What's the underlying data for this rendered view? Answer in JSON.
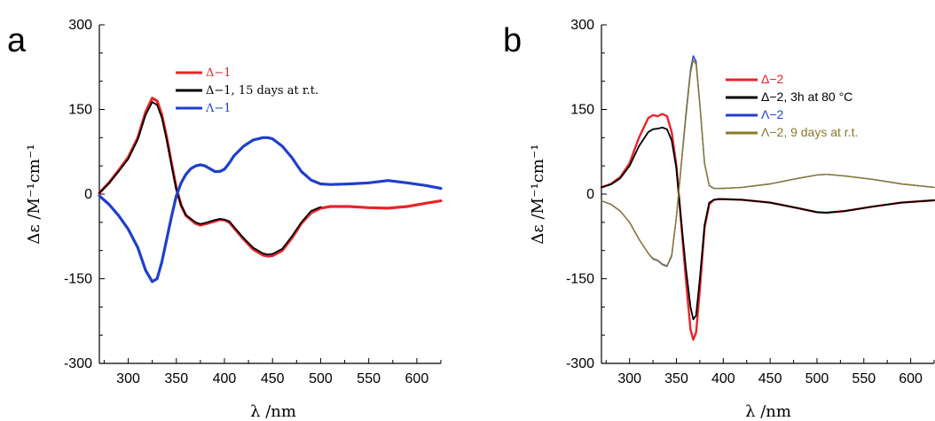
{
  "panels": [
    {
      "letter": "a",
      "xlabel": "λ /nm",
      "ylabel": "Δε /M⁻¹cm⁻¹",
      "xticks": [
        "300",
        "350",
        "400",
        "450",
        "500",
        "550",
        "600"
      ],
      "yticks": [
        "300",
        "150",
        "0",
        "-150",
        "-300"
      ]
    },
    {
      "letter": "b",
      "xlabel": "λ /nm",
      "ylabel": "Δε /M⁻¹cm⁻¹",
      "xticks": [
        "300",
        "350",
        "400",
        "450",
        "500",
        "550",
        "600"
      ],
      "yticks": [
        "300",
        "150",
        "0",
        "-150",
        "-300"
      ]
    }
  ],
  "legends": [
    [
      {
        "label": "Δ−1",
        "color": "#e8242a",
        "text_color": "#e8242a"
      },
      {
        "label": "Δ−1, 15 days at r.t.",
        "color": "#000000",
        "text_color": "#000000"
      },
      {
        "label": "Λ−1",
        "color": "#1f3fcc",
        "text_color": "#1f3fcc"
      }
    ],
    [
      {
        "label": "Δ−2",
        "color": "#e8242a",
        "text_color": "#e8242a"
      },
      {
        "label": "Δ−2, 3h at 80 °C",
        "color": "#000000",
        "text_color": "#000000"
      },
      {
        "label": "Λ−2",
        "color": "#1f3fcc",
        "text_color": "#1f3fcc"
      },
      {
        "label": "Λ−2, 9 days at r.t.",
        "color": "#8a7a2a",
        "text_color": "#8a7a2a"
      }
    ]
  ],
  "chart_data": [
    {
      "type": "line",
      "xlabel": "λ /nm",
      "ylabel": "Δε /M⁻¹cm⁻¹",
      "xlim": [
        270,
        625
      ],
      "ylim": [
        -300,
        300
      ],
      "grid": false,
      "legend_position": "top-center",
      "series": [
        {
          "name": "Δ−1",
          "color": "#e8242a",
          "width": 3.2,
          "x": [
            270,
            280,
            290,
            300,
            310,
            318,
            325,
            330,
            335,
            340,
            345,
            350,
            355,
            360,
            370,
            375,
            380,
            390,
            395,
            400,
            405,
            410,
            420,
            430,
            440,
            445,
            450,
            460,
            470,
            480,
            490,
            500,
            510,
            530,
            550,
            570,
            590,
            610,
            625
          ],
          "y": [
            2,
            20,
            42,
            65,
            100,
            145,
            170,
            165,
            140,
            100,
            55,
            10,
            -20,
            -38,
            -52,
            -55,
            -53,
            -48,
            -45,
            -46,
            -50,
            -60,
            -80,
            -98,
            -108,
            -110,
            -109,
            -100,
            -78,
            -52,
            -33,
            -25,
            -22,
            -22,
            -24,
            -25,
            -22,
            -16,
            -12
          ]
        },
        {
          "name": "Δ−1, 15 days at r.t.",
          "color": "#000000",
          "width": 1.8,
          "x": [
            270,
            280,
            290,
            300,
            310,
            318,
            325,
            330,
            335,
            340,
            345,
            350,
            355,
            360,
            370,
            375,
            380,
            390,
            395,
            400,
            405,
            410,
            420,
            430,
            440,
            445,
            450,
            460,
            470,
            480,
            490,
            500
          ],
          "y": [
            2,
            19,
            40,
            62,
            97,
            140,
            163,
            158,
            135,
            97,
            52,
            8,
            -20,
            -37,
            -50,
            -53,
            -51,
            -46,
            -44,
            -45,
            -48,
            -58,
            -78,
            -95,
            -105,
            -107,
            -106,
            -97,
            -75,
            -50,
            -30,
            -23
          ]
        },
        {
          "name": "Λ−1",
          "color": "#1f3fcc",
          "width": 3.2,
          "x": [
            270,
            280,
            290,
            300,
            310,
            318,
            325,
            330,
            335,
            340,
            345,
            350,
            355,
            360,
            365,
            370,
            375,
            380,
            385,
            390,
            395,
            400,
            405,
            410,
            420,
            430,
            440,
            445,
            450,
            460,
            470,
            480,
            490,
            500,
            510,
            530,
            550,
            570,
            590,
            610,
            625
          ],
          "y": [
            -3,
            -18,
            -38,
            -62,
            -95,
            -135,
            -155,
            -150,
            -120,
            -80,
            -40,
            -3,
            20,
            35,
            45,
            50,
            52,
            50,
            45,
            40,
            40,
            44,
            55,
            68,
            85,
            96,
            100,
            100,
            98,
            85,
            65,
            40,
            25,
            18,
            17,
            18,
            20,
            24,
            20,
            15,
            10
          ]
        }
      ]
    },
    {
      "type": "line",
      "xlabel": "λ /nm",
      "ylabel": "Δε /M⁻¹cm⁻¹",
      "xlim": [
        270,
        625
      ],
      "ylim": [
        -300,
        300
      ],
      "grid": false,
      "legend_position": "top-center",
      "series": [
        {
          "name": "Δ−2",
          "color": "#e8242a",
          "width": 2.4,
          "x": [
            270,
            280,
            290,
            300,
            310,
            320,
            325,
            330,
            335,
            340,
            345,
            350,
            355,
            360,
            365,
            368,
            371,
            375,
            380,
            385,
            390,
            395,
            400,
            420,
            450,
            480,
            500,
            510,
            530,
            560,
            590,
            625
          ],
          "y": [
            12,
            18,
            30,
            55,
            100,
            135,
            140,
            138,
            142,
            138,
            110,
            50,
            -50,
            -150,
            -240,
            -258,
            -245,
            -170,
            -60,
            -18,
            -10,
            -9,
            -9,
            -10,
            -15,
            -25,
            -32,
            -33,
            -30,
            -22,
            -15,
            -11
          ]
        },
        {
          "name": "Δ−2, 3h at 80 °C",
          "color": "#000000",
          "width": 1.8,
          "x": [
            270,
            280,
            290,
            300,
            310,
            320,
            325,
            330,
            335,
            340,
            345,
            350,
            355,
            360,
            365,
            368,
            371,
            375,
            380,
            385,
            390,
            395,
            400,
            420,
            450,
            480,
            500,
            510,
            530,
            560,
            590,
            625
          ],
          "y": [
            12,
            17,
            28,
            50,
            85,
            110,
            115,
            116,
            118,
            115,
            95,
            45,
            -45,
            -130,
            -200,
            -222,
            -215,
            -150,
            -55,
            -15,
            -10,
            -9,
            -9,
            -10,
            -15,
            -25,
            -32,
            -33,
            -30,
            -22,
            -15,
            -11
          ]
        },
        {
          "name": "Λ−2",
          "color": "#1f3fcc",
          "width": 1.4,
          "x": [
            270,
            280,
            290,
            300,
            310,
            320,
            325,
            330,
            335,
            340,
            345,
            350,
            355,
            360,
            365,
            368,
            371,
            375,
            380,
            385,
            390,
            395,
            400,
            420,
            450,
            480,
            500,
            510,
            530,
            560,
            590,
            625
          ],
          "y": [
            -12,
            -18,
            -30,
            -50,
            -80,
            -105,
            -115,
            -118,
            -125,
            -128,
            -110,
            -40,
            50,
            140,
            220,
            245,
            235,
            160,
            55,
            15,
            10,
            10,
            10,
            12,
            18,
            28,
            34,
            35,
            32,
            26,
            18,
            12
          ]
        },
        {
          "name": "Λ−2, 9 days at r.t.",
          "color": "#8a7a2a",
          "width": 1.4,
          "x": [
            270,
            280,
            290,
            300,
            310,
            320,
            325,
            330,
            335,
            340,
            345,
            350,
            355,
            360,
            365,
            368,
            371,
            375,
            380,
            385,
            390,
            395,
            400,
            420,
            450,
            480,
            500,
            510,
            530,
            560,
            590,
            625
          ],
          "y": [
            -12,
            -18,
            -30,
            -50,
            -80,
            -105,
            -114,
            -117,
            -124,
            -127,
            -108,
            -40,
            48,
            135,
            215,
            238,
            230,
            158,
            54,
            15,
            10,
            10,
            10,
            12,
            18,
            28,
            34,
            35,
            32,
            26,
            18,
            12
          ]
        }
      ]
    }
  ]
}
